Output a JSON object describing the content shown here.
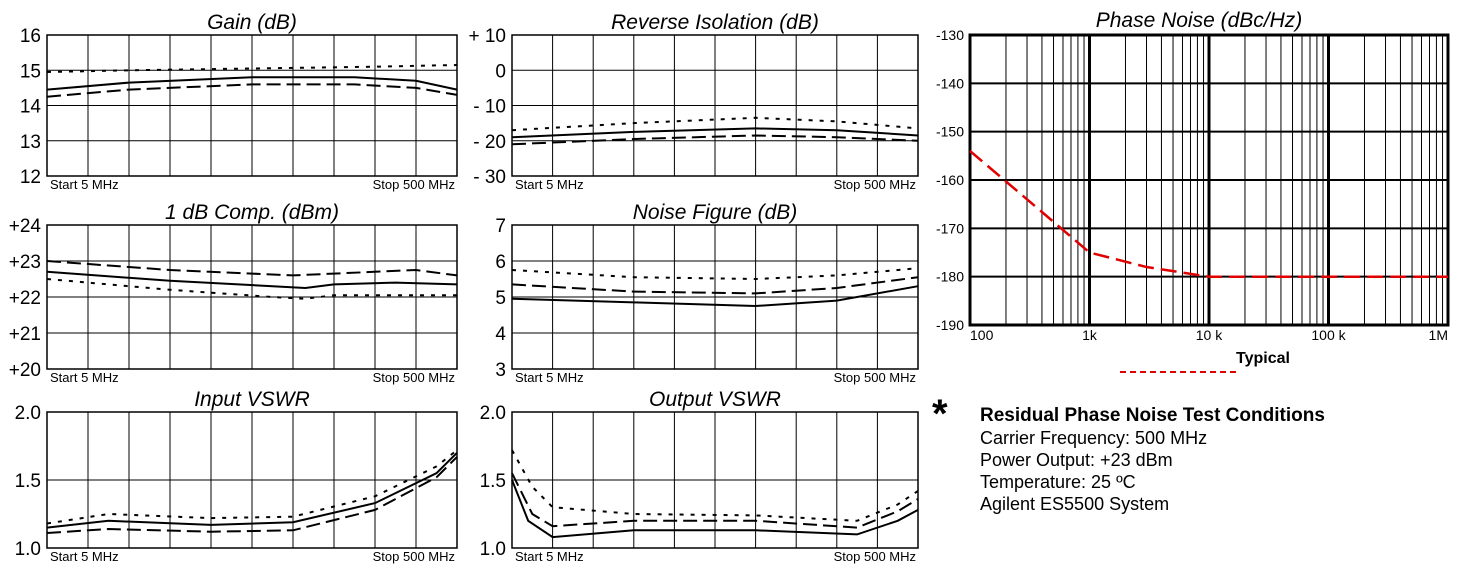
{
  "legend": {
    "label": "Typical",
    "color": "#e00000"
  },
  "conditions": {
    "star": "*",
    "title": "Residual Phase Noise Test Conditions",
    "lines": [
      "Carrier Frequency: 500 MHz",
      "Power Output: +23 dBm",
      "Temperature: 25 ºC",
      "Agilent ES5500 System"
    ]
  },
  "chart_data": [
    {
      "type": "line",
      "title": "Gain (dB)",
      "xlabel_start": "Start  5  MHz",
      "xlabel_stop": "Stop  500 MHz",
      "yticks": [
        "16",
        "15",
        "14",
        "13",
        "12"
      ],
      "ylim": [
        12,
        16
      ],
      "series": [
        {
          "style": "dotted",
          "points": [
            [
              0,
              14.95
            ],
            [
              0.2,
              15.0
            ],
            [
              0.5,
              15.05
            ],
            [
              0.8,
              15.1
            ],
            [
              1,
              15.15
            ]
          ]
        },
        {
          "style": "solid",
          "points": [
            [
              0,
              14.45
            ],
            [
              0.2,
              14.65
            ],
            [
              0.5,
              14.8
            ],
            [
              0.75,
              14.8
            ],
            [
              0.9,
              14.7
            ],
            [
              1,
              14.45
            ]
          ]
        },
        {
          "style": "dashed",
          "points": [
            [
              0,
              14.25
            ],
            [
              0.2,
              14.45
            ],
            [
              0.5,
              14.6
            ],
            [
              0.75,
              14.6
            ],
            [
              0.9,
              14.5
            ],
            [
              1,
              14.3
            ]
          ]
        }
      ]
    },
    {
      "type": "line",
      "title": "Reverse Isolation (dB)",
      "xlabel_start": "Start  5  MHz",
      "xlabel_stop": "Stop  500 MHz",
      "yticks": [
        "+ 10",
        "0",
        "- 10",
        "- 20",
        "- 30"
      ],
      "ylim": [
        -30,
        10
      ],
      "series": [
        {
          "style": "dotted",
          "points": [
            [
              0,
              -17
            ],
            [
              0.3,
              -15
            ],
            [
              0.6,
              -13.5
            ],
            [
              0.8,
              -14.5
            ],
            [
              1,
              -16.5
            ]
          ]
        },
        {
          "style": "solid",
          "points": [
            [
              0,
              -19
            ],
            [
              0.3,
              -17.5
            ],
            [
              0.6,
              -16.5
            ],
            [
              0.8,
              -17
            ],
            [
              1,
              -18.5
            ]
          ]
        },
        {
          "style": "dashed",
          "points": [
            [
              0,
              -21
            ],
            [
              0.3,
              -19.5
            ],
            [
              0.6,
              -18.5
            ],
            [
              0.8,
              -19
            ],
            [
              1,
              -20
            ]
          ]
        }
      ]
    },
    {
      "type": "line",
      "title": "1 dB Comp. (dBm)",
      "xlabel_start": "Start  5  MHz",
      "xlabel_stop": "Stop  500 MHz",
      "yticks": [
        "+24",
        "+23",
        "+22",
        "+21",
        "+20"
      ],
      "ylim": [
        20,
        24
      ],
      "series": [
        {
          "style": "dashed",
          "points": [
            [
              0,
              23.0
            ],
            [
              0.3,
              22.75
            ],
            [
              0.6,
              22.6
            ],
            [
              0.8,
              22.7
            ],
            [
              0.9,
              22.75
            ],
            [
              1,
              22.6
            ]
          ]
        },
        {
          "style": "solid",
          "points": [
            [
              0,
              22.7
            ],
            [
              0.3,
              22.45
            ],
            [
              0.55,
              22.3
            ],
            [
              0.63,
              22.25
            ],
            [
              0.7,
              22.35
            ],
            [
              0.85,
              22.4
            ],
            [
              1,
              22.35
            ]
          ]
        },
        {
          "style": "dotted",
          "points": [
            [
              0,
              22.5
            ],
            [
              0.3,
              22.2
            ],
            [
              0.55,
              22.0
            ],
            [
              0.63,
              21.95
            ],
            [
              0.7,
              22.05
            ],
            [
              1,
              22.05
            ]
          ]
        }
      ]
    },
    {
      "type": "line",
      "title": "Noise Figure (dB)",
      "xlabel_start": "Start  5  MHz",
      "xlabel_stop": "Stop  500 MHz",
      "yticks": [
        "7",
        "6",
        "5",
        "4",
        "3"
      ],
      "ylim": [
        3,
        7
      ],
      "series": [
        {
          "style": "dotted",
          "points": [
            [
              0,
              5.75
            ],
            [
              0.3,
              5.55
            ],
            [
              0.6,
              5.5
            ],
            [
              0.8,
              5.6
            ],
            [
              1,
              5.8
            ]
          ]
        },
        {
          "style": "dashed",
          "points": [
            [
              0,
              5.35
            ],
            [
              0.3,
              5.15
            ],
            [
              0.6,
              5.1
            ],
            [
              0.8,
              5.25
            ],
            [
              1,
              5.55
            ]
          ]
        },
        {
          "style": "solid",
          "points": [
            [
              0,
              4.95
            ],
            [
              0.3,
              4.85
            ],
            [
              0.6,
              4.75
            ],
            [
              0.8,
              4.9
            ],
            [
              1,
              5.3
            ]
          ]
        }
      ]
    },
    {
      "type": "line",
      "title": "Input VSWR",
      "xlabel_start": "Start  5  MHz",
      "xlabel_stop": "Stop  500 MHz",
      "yticks": [
        "2.0",
        "1.5",
        "1.0"
      ],
      "ylim": [
        1.0,
        2.0
      ],
      "series": [
        {
          "style": "dotted",
          "points": [
            [
              0,
              1.18
            ],
            [
              0.15,
              1.25
            ],
            [
              0.4,
              1.22
            ],
            [
              0.6,
              1.23
            ],
            [
              0.8,
              1.38
            ],
            [
              0.95,
              1.6
            ],
            [
              1,
              1.72
            ]
          ]
        },
        {
          "style": "solid",
          "points": [
            [
              0,
              1.15
            ],
            [
              0.15,
              1.2
            ],
            [
              0.4,
              1.17
            ],
            [
              0.6,
              1.19
            ],
            [
              0.8,
              1.33
            ],
            [
              0.95,
              1.55
            ],
            [
              1,
              1.7
            ]
          ]
        },
        {
          "style": "dashed",
          "points": [
            [
              0,
              1.11
            ],
            [
              0.15,
              1.14
            ],
            [
              0.4,
              1.12
            ],
            [
              0.6,
              1.13
            ],
            [
              0.8,
              1.28
            ],
            [
              0.95,
              1.52
            ],
            [
              1,
              1.67
            ]
          ]
        }
      ]
    },
    {
      "type": "line",
      "title": "Output VSWR",
      "xlabel_start": "Start  5  MHz",
      "xlabel_stop": "Stop  500 MHz",
      "yticks": [
        "2.0",
        "1.5",
        "1.0"
      ],
      "ylim": [
        1.0,
        2.0
      ],
      "series": [
        {
          "style": "dotted",
          "points": [
            [
              0,
              1.72
            ],
            [
              0.05,
              1.45
            ],
            [
              0.1,
              1.3
            ],
            [
              0.3,
              1.25
            ],
            [
              0.6,
              1.24
            ],
            [
              0.85,
              1.2
            ],
            [
              0.95,
              1.32
            ],
            [
              1,
              1.42
            ]
          ]
        },
        {
          "style": "dashed",
          "points": [
            [
              0,
              1.55
            ],
            [
              0.05,
              1.25
            ],
            [
              0.1,
              1.16
            ],
            [
              0.3,
              1.2
            ],
            [
              0.6,
              1.2
            ],
            [
              0.85,
              1.15
            ],
            [
              0.95,
              1.27
            ],
            [
              1,
              1.36
            ]
          ]
        },
        {
          "style": "solid",
          "points": [
            [
              0,
              1.5
            ],
            [
              0.04,
              1.2
            ],
            [
              0.1,
              1.08
            ],
            [
              0.3,
              1.13
            ],
            [
              0.6,
              1.13
            ],
            [
              0.85,
              1.1
            ],
            [
              0.95,
              1.2
            ],
            [
              1,
              1.28
            ]
          ]
        }
      ]
    },
    {
      "type": "line",
      "title": "Phase Noise (dBc/Hz)",
      "xscale": "log",
      "xlim": [
        100,
        1000000
      ],
      "ylim": [
        -190,
        -130
      ],
      "xticks": [
        "100",
        "1k",
        "10 k",
        "100 k",
        "1M"
      ],
      "yticks": [
        "-130",
        "-140",
        "-150",
        "-160",
        "-170",
        "-180",
        "-190"
      ],
      "series": [
        {
          "name": "Typical",
          "style": "dashed",
          "color": "#e00000",
          "points": [
            [
              100,
              -154
            ],
            [
              300,
              -164
            ],
            [
              1000,
              -175
            ],
            [
              3000,
              -178
            ],
            [
              10000,
              -180
            ],
            [
              100000,
              -180
            ],
            [
              1000000,
              -180
            ]
          ]
        }
      ]
    }
  ]
}
